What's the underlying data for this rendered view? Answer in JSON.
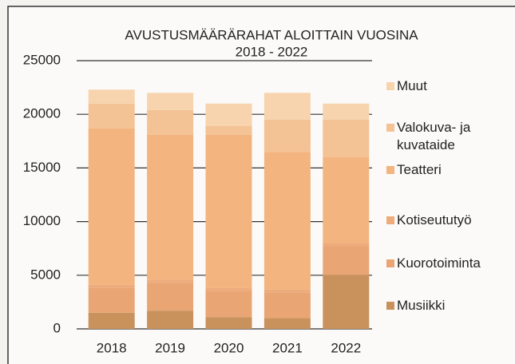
{
  "chart_data": {
    "type": "stacked-bar",
    "title": "AVUSTUSMÄÄRÄRAHAT ALOITTAIN VUOSINA",
    "subtitle": "2018 - 2022",
    "categories": [
      "2018",
      "2019",
      "2020",
      "2021",
      "2022"
    ],
    "series": [
      {
        "name": "Musiikki",
        "color": "#c9925c",
        "values": [
          1500,
          1700,
          1100,
          1000,
          5000
        ]
      },
      {
        "name": "Kuorotoiminta",
        "color": "#e9a574",
        "values": [
          2300,
          2600,
          2400,
          2400,
          2700
        ]
      },
      {
        "name": "Kotiseututyö",
        "color": "#eeac7c",
        "values": [
          300,
          300,
          300,
          300,
          300
        ]
      },
      {
        "name": "Teatteri",
        "color": "#f4b47f",
        "values": [
          14600,
          13500,
          14300,
          12800,
          8000
        ]
      },
      {
        "name": "Valokuva- ja kuvataide",
        "color": "#f3c295",
        "values": [
          2300,
          2300,
          800,
          3000,
          3500
        ]
      },
      {
        "name": "Muut",
        "color": "#f7d4ae",
        "values": [
          1300,
          1600,
          2100,
          2500,
          1500
        ]
      }
    ],
    "ylim": [
      0,
      25000
    ],
    "yticks": [
      0,
      5000,
      10000,
      15000,
      20000,
      25000
    ],
    "grid": true
  }
}
